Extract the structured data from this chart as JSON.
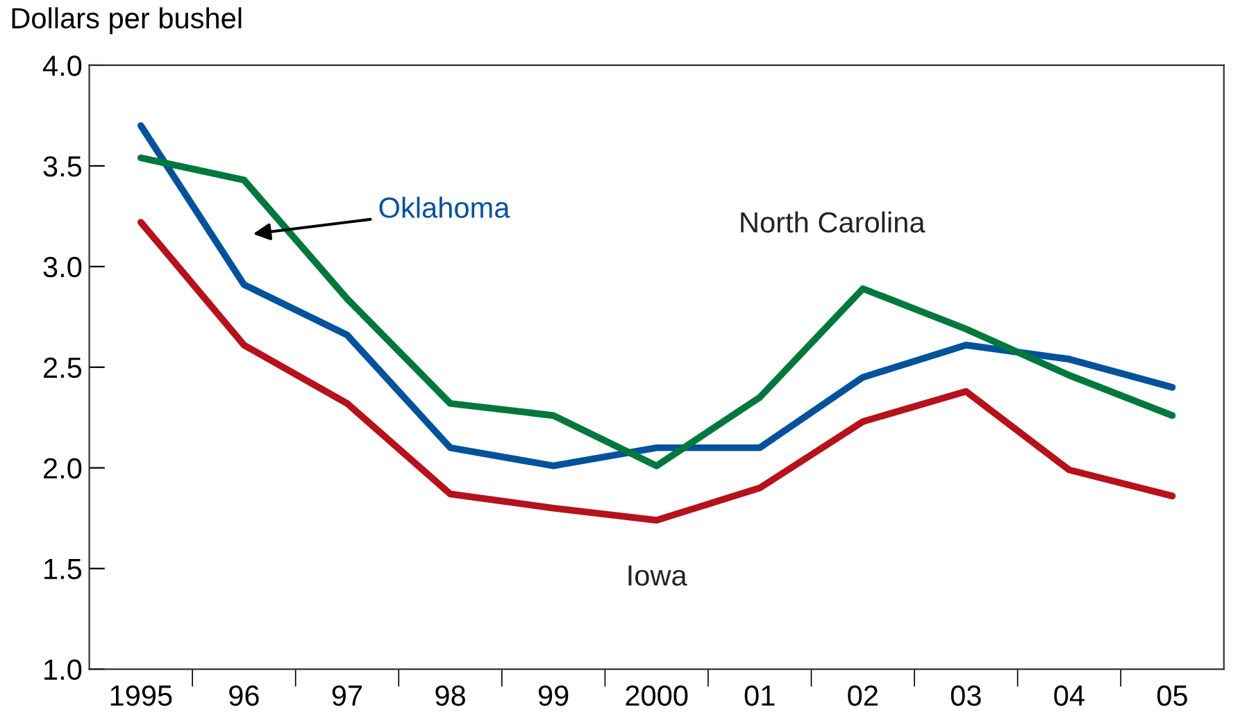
{
  "chart_data": {
    "type": "line",
    "ylabel": "Dollars per bushel",
    "categories": [
      "1995",
      "96",
      "97",
      "98",
      "99",
      "2000",
      "01",
      "02",
      "03",
      "04",
      "05"
    ],
    "series": [
      {
        "name": "Oklahoma",
        "color": "#00529b",
        "values": [
          3.7,
          2.91,
          2.66,
          2.1,
          2.01,
          2.1,
          2.1,
          2.45,
          2.61,
          2.54,
          2.4
        ]
      },
      {
        "name": "North Carolina",
        "color": "#00773c",
        "values": [
          3.54,
          3.43,
          2.84,
          2.32,
          2.26,
          2.01,
          2.35,
          2.89,
          2.69,
          2.46,
          2.26
        ]
      },
      {
        "name": "Iowa",
        "color": "#b5121b",
        "values": [
          3.22,
          2.61,
          2.32,
          1.87,
          1.8,
          1.74,
          1.9,
          2.23,
          2.38,
          1.99,
          1.86
        ]
      }
    ],
    "ylim": [
      1.0,
      4.0
    ],
    "yticks": [
      {
        "value": 1.0,
        "label": "1.0"
      },
      {
        "value": 1.5,
        "label": "1.5"
      },
      {
        "value": 2.0,
        "label": "2.0"
      },
      {
        "value": 2.5,
        "label": "2.5"
      },
      {
        "value": 3.0,
        "label": "3.0"
      },
      {
        "value": 3.5,
        "label": "3.5"
      },
      {
        "value": 4.0,
        "label": "4.0"
      }
    ],
    "grid": false,
    "legend": false,
    "marker": "none",
    "line_style": "solid"
  }
}
